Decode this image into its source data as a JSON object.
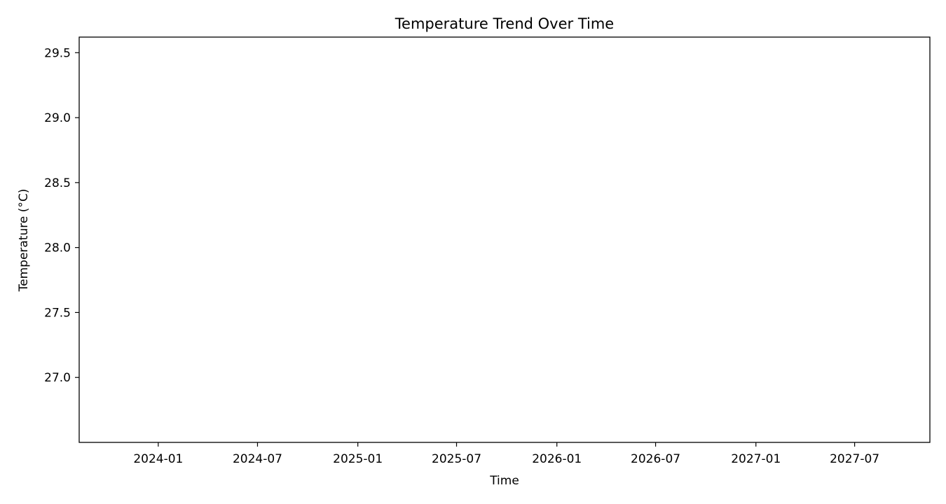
{
  "chart_data": {
    "type": "line",
    "title": "Temperature Trend Over Time",
    "xlabel": "Time",
    "ylabel": "Temperature (°C)",
    "x_axis_type": "date",
    "xlim": [
      "2023-08-09",
      "2027-11-16"
    ],
    "ylim": [
      26.5,
      29.62
    ],
    "x_ticks": [
      "2024-01",
      "2024-07",
      "2025-01",
      "2025-07",
      "2026-01",
      "2026-07",
      "2027-01",
      "2027-07"
    ],
    "y_ticks": [
      "27.0",
      "27.5",
      "28.0",
      "28.5",
      "29.0",
      "29.5"
    ],
    "series": [],
    "grid": false,
    "legend": "none"
  }
}
